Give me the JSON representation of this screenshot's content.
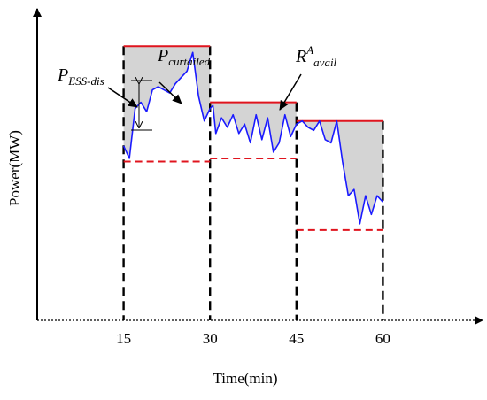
{
  "chart_data": {
    "type": "line",
    "xlabel": "Time(min)",
    "ylabel": "Power(MW)",
    "xticks": [
      15,
      30,
      45,
      60
    ],
    "xlim": [
      0,
      75
    ],
    "ylim": [
      0,
      100
    ],
    "colors": {
      "series": "#1a1aff",
      "limits": "#e0141e",
      "shade": "#d4d4d4",
      "boundaries": "#000000"
    },
    "intervals": [
      {
        "start": 15,
        "end": 30,
        "upper_limit": 88,
        "lower_limit": 51
      },
      {
        "start": 30,
        "end": 45,
        "upper_limit": 70,
        "lower_limit": 52
      },
      {
        "start": 45,
        "end": 60,
        "upper_limit": 64,
        "lower_limit": 29
      }
    ],
    "series": [
      {
        "x": [
          15,
          16,
          17,
          18,
          19,
          20,
          21,
          22,
          23,
          24,
          25,
          26,
          27,
          28,
          29,
          30,
          30.5,
          31,
          32,
          33,
          34,
          35,
          36,
          37,
          38,
          39,
          40,
          41,
          42,
          43,
          44,
          45,
          46,
          47,
          48,
          49,
          50,
          51,
          52,
          53,
          54,
          55,
          56,
          57,
          58,
          59,
          60
        ],
        "y": [
          56,
          52,
          68,
          70,
          67,
          74,
          75,
          74,
          73,
          76,
          78,
          80,
          86,
          72,
          64,
          68,
          69,
          60,
          65,
          62,
          66,
          60,
          63,
          57,
          66,
          58,
          65,
          54,
          57,
          66,
          59,
          63,
          64,
          62,
          61,
          64,
          58,
          57,
          64,
          51,
          40,
          42,
          31,
          40,
          34,
          40,
          38
        ]
      }
    ],
    "annotations": [
      {
        "label_main": "P",
        "label_sub": "ESS-dis"
      },
      {
        "label_main": "P",
        "label_sub": "curtailed"
      },
      {
        "label_main": "R",
        "label_sup": "A",
        "label_sub": "avail"
      }
    ]
  }
}
